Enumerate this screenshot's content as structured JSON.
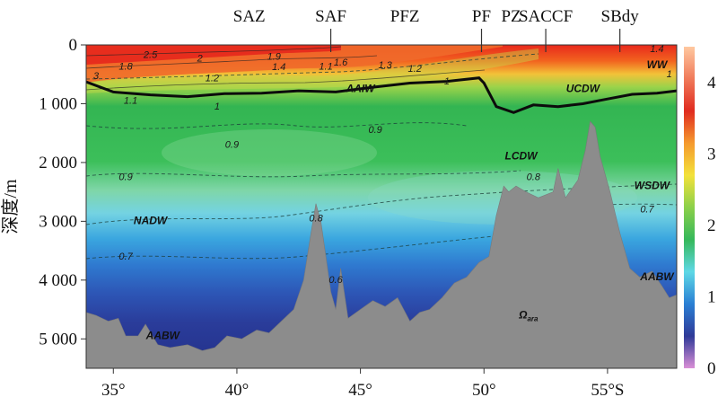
{
  "chart_data": {
    "type": "heatmap",
    "ylabel": "深度/m",
    "x_ticks": [
      {
        "value": 35,
        "label": "35°"
      },
      {
        "value": 40,
        "label": "40°"
      },
      {
        "value": 45,
        "label": "45°"
      },
      {
        "value": 50,
        "label": "50°"
      },
      {
        "value": 55,
        "label": "55°S"
      }
    ],
    "y_ticks": [
      {
        "value": 0,
        "label": "0"
      },
      {
        "value": 1000,
        "label": "1 000"
      },
      {
        "value": 2000,
        "label": "2 000"
      },
      {
        "value": 3000,
        "label": "3 000"
      },
      {
        "value": 4000,
        "label": "4 000"
      },
      {
        "value": 5000,
        "label": "5 000"
      }
    ],
    "xlim": [
      33.9,
      57.8
    ],
    "ylim": [
      5500,
      0
    ],
    "colorbar": {
      "range": [
        0,
        4.5
      ],
      "ticks": [
        {
          "value": 0,
          "label": "0"
        },
        {
          "value": 1,
          "label": "1"
        },
        {
          "value": 2,
          "label": "2"
        },
        {
          "value": 3,
          "label": "3"
        },
        {
          "value": 4,
          "label": "4"
        }
      ],
      "colors": [
        "#d98fd6",
        "#2f3a98",
        "#2a7fd4",
        "#5ed8e6",
        "#35b85a",
        "#8bd04a",
        "#f3e23a",
        "#f59a2e",
        "#e02b1f",
        "#f07a5a",
        "#ffc8a0"
      ]
    },
    "fronts": [
      {
        "label": "SAZ",
        "x": 40.5,
        "tick": false
      },
      {
        "label": "SAF",
        "x": 43.8,
        "tick": true
      },
      {
        "label": "PFZ",
        "x": 46.8,
        "tick": false
      },
      {
        "label": "PF",
        "x": 49.9,
        "tick": true
      },
      {
        "label": "PZ",
        "x": 51.1,
        "tick": false
      },
      {
        "label": "SACCF",
        "x": 52.5,
        "tick": true
      },
      {
        "label": "SBdy",
        "x": 55.5,
        "tick": true
      }
    ],
    "omega_1_contour": {
      "value": "1",
      "x": [
        33.9,
        35.0,
        36.5,
        38.0,
        39.5,
        41.0,
        42.5,
        44.0,
        45.5,
        47.0,
        48.5,
        49.8,
        50.0,
        50.5,
        51.2,
        52.0,
        53.0,
        54.0,
        55.0,
        56.0,
        57.0,
        57.8
      ],
      "depth": [
        630,
        800,
        850,
        880,
        830,
        820,
        780,
        800,
        720,
        650,
        620,
        560,
        650,
        1050,
        1150,
        1020,
        1050,
        1000,
        920,
        840,
        820,
        780
      ]
    },
    "bathymetry": {
      "x": [
        33.9,
        34.3,
        34.8,
        35.2,
        35.5,
        36.0,
        36.3,
        36.8,
        37.3,
        38.0,
        38.6,
        39.1,
        39.6,
        40.2,
        40.8,
        41.3,
        41.8,
        42.3,
        42.7,
        43.0,
        43.2,
        43.4,
        43.6,
        43.8,
        44.0,
        44.2,
        44.5,
        45.0,
        45.5,
        46.0,
        46.5,
        47.0,
        47.4,
        47.8,
        48.3,
        48.8,
        49.3,
        49.8,
        50.2,
        50.5,
        50.8,
        51.0,
        51.3,
        51.7,
        52.2,
        52.8,
        53.0,
        53.3,
        53.8,
        54.1,
        54.3,
        54.5,
        54.7,
        55.1,
        55.5,
        55.9,
        56.3,
        56.8,
        57.2,
        57.5,
        57.8
      ],
      "depth": [
        4550,
        4600,
        4700,
        4650,
        4950,
        4950,
        4750,
        5100,
        5150,
        5100,
        5200,
        5150,
        4950,
        5000,
        4850,
        4900,
        4700,
        4500,
        4000,
        3200,
        2700,
        3000,
        3600,
        4200,
        4500,
        3800,
        4650,
        4500,
        4350,
        4450,
        4300,
        4700,
        4550,
        4500,
        4300,
        4050,
        3950,
        3700,
        3600,
        2900,
        2400,
        2500,
        2400,
        2500,
        2600,
        2500,
        2100,
        2600,
        2300,
        1800,
        1300,
        1400,
        1900,
        2500,
        3200,
        3800,
        3950,
        3850,
        4100,
        4300,
        4250
      ]
    },
    "contour_labels": [
      {
        "text": "2.5",
        "x": 36.5,
        "depth": 220
      },
      {
        "text": "2",
        "x": 38.5,
        "depth": 280
      },
      {
        "text": "1.9",
        "x": 41.5,
        "depth": 250
      },
      {
        "text": "1.8",
        "x": 35.5,
        "depth": 420
      },
      {
        "text": "1.4",
        "x": 41.7,
        "depth": 430
      },
      {
        "text": "1.1",
        "x": 43.6,
        "depth": 420
      },
      {
        "text": "1.6",
        "x": 44.2,
        "depth": 350
      },
      {
        "text": "1.3",
        "x": 46.0,
        "depth": 400
      },
      {
        "text": "1.2",
        "x": 47.2,
        "depth": 460
      },
      {
        "text": "1.2",
        "x": 39.0,
        "depth": 620
      },
      {
        "text": "3",
        "x": 34.3,
        "depth": 580
      },
      {
        "text": "1.1",
        "x": 35.7,
        "depth": 1000
      },
      {
        "text": "1",
        "x": 39.2,
        "depth": 1100
      },
      {
        "text": "1",
        "x": 48.5,
        "depth": 670
      },
      {
        "text": "1.4",
        "x": 57.0,
        "depth": 120
      },
      {
        "text": "1",
        "x": 57.5,
        "depth": 550
      },
      {
        "text": "0.9",
        "x": 39.8,
        "depth": 1750
      },
      {
        "text": "0.9",
        "x": 45.6,
        "depth": 1500
      },
      {
        "text": "0.9",
        "x": 35.5,
        "depth": 2300
      },
      {
        "text": "0.8",
        "x": 52.0,
        "depth": 2300
      },
      {
        "text": "0.8",
        "x": 43.2,
        "depth": 3000
      },
      {
        "text": "0.7",
        "x": 35.5,
        "depth": 3650
      },
      {
        "text": "0.7",
        "x": 56.6,
        "depth": 2850
      },
      {
        "text": "0.6",
        "x": 44.0,
        "depth": 4050
      }
    ],
    "water_masses": [
      {
        "text": "SAZ",
        "x": 0,
        "depth": 0,
        "hidden": true
      }
    ],
    "annotations": [
      {
        "text": "WW",
        "x": 57.0,
        "depth": 400
      },
      {
        "text": "AAIW",
        "x": 45.0,
        "depth": 800
      },
      {
        "text": "UCDW",
        "x": 54.0,
        "depth": 800
      },
      {
        "text": "LCDW",
        "x": 51.5,
        "depth": 1950
      },
      {
        "text": "WSDW",
        "x": 56.8,
        "depth": 2450
      },
      {
        "text": "NADW",
        "x": 36.5,
        "depth": 3050
      },
      {
        "text": "AABW",
        "x": 57.0,
        "depth": 4000
      },
      {
        "text": "AABW",
        "x": 37.0,
        "depth": 5000
      },
      {
        "text": "Ω",
        "sub": "ara",
        "x": 51.8,
        "depth": 4650
      }
    ]
  }
}
